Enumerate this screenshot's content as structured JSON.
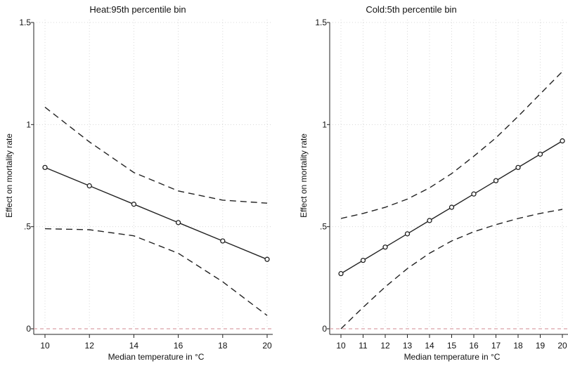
{
  "chart_data": [
    {
      "type": "line",
      "title": "Heat:95th percentile bin",
      "xlabel": "Median temperature in °C",
      "ylabel": "Effect on mortality rate",
      "xlim": [
        10,
        20
      ],
      "ylim": [
        0,
        1.5
      ],
      "x_ticks": [
        "10",
        "12",
        "14",
        "16",
        "18",
        "20"
      ],
      "y_ticks": [
        "0",
        ".5",
        "1",
        "1.5"
      ],
      "grid": true,
      "reference_line_y": 0,
      "series": [
        {
          "role": "estimate",
          "x": [
            10,
            12,
            14,
            16,
            18,
            20
          ],
          "values": [
            0.79,
            0.7,
            0.61,
            0.52,
            0.43,
            0.34
          ]
        },
        {
          "role": "upper_ci",
          "x": [
            10,
            12,
            14,
            16,
            18,
            20
          ],
          "values": [
            1.085,
            0.915,
            0.765,
            0.675,
            0.63,
            0.615
          ]
        },
        {
          "role": "lower_ci",
          "x": [
            10,
            12,
            14,
            16,
            18,
            20
          ],
          "values": [
            0.49,
            0.485,
            0.455,
            0.37,
            0.23,
            0.065
          ]
        }
      ]
    },
    {
      "type": "line",
      "title": "Cold:5th percentile bin",
      "xlabel": "Median temperature in °C",
      "ylabel": "Effect on mortality rate",
      "xlim": [
        10,
        20
      ],
      "ylim": [
        0,
        1.5
      ],
      "x_ticks": [
        "10",
        "11",
        "12",
        "13",
        "14",
        "15",
        "16",
        "17",
        "18",
        "19",
        "20"
      ],
      "y_ticks": [
        "0",
        ".5",
        "1",
        "1.5"
      ],
      "grid": true,
      "reference_line_y": 0,
      "series": [
        {
          "role": "estimate",
          "x": [
            10,
            11,
            12,
            13,
            14,
            15,
            16,
            17,
            18,
            19,
            20
          ],
          "values": [
            0.27,
            0.335,
            0.4,
            0.465,
            0.53,
            0.595,
            0.66,
            0.725,
            0.79,
            0.855,
            0.92
          ]
        },
        {
          "role": "upper_ci",
          "x": [
            10,
            11,
            12,
            13,
            14,
            15,
            16,
            17,
            18,
            19,
            20
          ],
          "values": [
            0.54,
            0.565,
            0.595,
            0.635,
            0.69,
            0.76,
            0.845,
            0.935,
            1.04,
            1.15,
            1.26
          ]
        },
        {
          "role": "lower_ci",
          "x": [
            10,
            11,
            12,
            13,
            14,
            15,
            16,
            17,
            18,
            19,
            20
          ],
          "values": [
            0.0,
            0.105,
            0.205,
            0.295,
            0.37,
            0.43,
            0.475,
            0.51,
            0.54,
            0.565,
            0.585
          ]
        }
      ]
    }
  ]
}
